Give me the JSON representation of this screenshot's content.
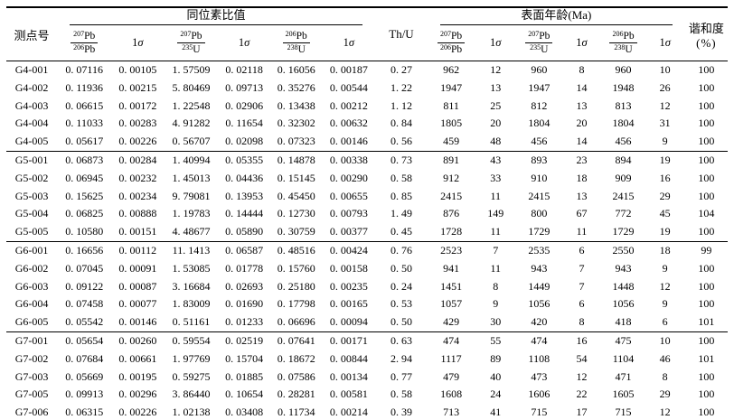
{
  "table": {
    "header": {
      "spot": "测点号",
      "isotope_group": "同位素比值",
      "th_u": "Th/U",
      "age_group": "表面年龄(Ma)",
      "concordance_line1": "谐和度",
      "concordance_line2": "(%)",
      "sigma_one": "1",
      "sigma_sym": "σ",
      "frac_pb207_pb206": {
        "num_sup": "207",
        "num_el": "Pb",
        "den_sup": "206",
        "den_el": "Pb"
      },
      "frac_pb207_u235": {
        "num_sup": "207",
        "num_el": "Pb",
        "den_sup": "235",
        "den_el": "U"
      },
      "frac_pb206_u238": {
        "num_sup": "206",
        "num_el": "Pb",
        "den_sup": "238",
        "den_el": "U"
      }
    },
    "column_keys": [
      "spot",
      "ratio_207_206",
      "sigma_207_206",
      "ratio_207_235",
      "sigma_207_235",
      "ratio_206_238",
      "sigma_206_238",
      "th_u",
      "age_207_206",
      "age_sigma_207_206",
      "age_207_235",
      "age_sigma_207_235",
      "age_206_238",
      "age_sigma_206_238",
      "concordance_pct"
    ],
    "groups": [
      {
        "id": "G4",
        "rows": [
          [
            "G4-001",
            "0. 07116",
            "0. 00105",
            "1. 57509",
            "0. 02118",
            "0. 16056",
            "0. 00187",
            "0. 27",
            "962",
            "12",
            "960",
            "8",
            "960",
            "10",
            "100"
          ],
          [
            "G4-002",
            "0. 11936",
            "0. 00215",
            "5. 80469",
            "0. 09713",
            "0. 35276",
            "0. 00544",
            "1. 22",
            "1947",
            "13",
            "1947",
            "14",
            "1948",
            "26",
            "100"
          ],
          [
            "G4-003",
            "0. 06615",
            "0. 00172",
            "1. 22548",
            "0. 02906",
            "0. 13438",
            "0. 00212",
            "1. 12",
            "811",
            "25",
            "812",
            "13",
            "813",
            "12",
            "100"
          ],
          [
            "G4-004",
            "0. 11033",
            "0. 00283",
            "4. 91282",
            "0. 11654",
            "0. 32302",
            "0. 00632",
            "0. 84",
            "1805",
            "20",
            "1804",
            "20",
            "1804",
            "31",
            "100"
          ],
          [
            "G4-005",
            "0. 05617",
            "0. 00226",
            "0. 56707",
            "0. 02098",
            "0. 07323",
            "0. 00146",
            "0. 56",
            "459",
            "48",
            "456",
            "14",
            "456",
            "9",
            "100"
          ]
        ]
      },
      {
        "id": "G5",
        "rows": [
          [
            "G5-001",
            "0. 06873",
            "0. 00284",
            "1. 40994",
            "0. 05355",
            "0. 14878",
            "0. 00338",
            "0. 73",
            "891",
            "43",
            "893",
            "23",
            "894",
            "19",
            "100"
          ],
          [
            "G5-002",
            "0. 06945",
            "0. 00232",
            "1. 45013",
            "0. 04436",
            "0. 15145",
            "0. 00290",
            "0. 58",
            "912",
            "33",
            "910",
            "18",
            "909",
            "16",
            "100"
          ],
          [
            "G5-003",
            "0. 15625",
            "0. 00234",
            "9. 79081",
            "0. 13953",
            "0. 45450",
            "0. 00655",
            "0. 85",
            "2415",
            "11",
            "2415",
            "13",
            "2415",
            "29",
            "100"
          ],
          [
            "G5-004",
            "0. 06825",
            "0. 00888",
            "1. 19783",
            "0. 14444",
            "0. 12730",
            "0. 00793",
            "1. 49",
            "876",
            "149",
            "800",
            "67",
            "772",
            "45",
            "104"
          ],
          [
            "G5-005",
            "0. 10580",
            "0. 00151",
            "4. 48677",
            "0. 05890",
            "0. 30759",
            "0. 00377",
            "0. 45",
            "1728",
            "11",
            "1729",
            "11",
            "1729",
            "19",
            "100"
          ]
        ]
      },
      {
        "id": "G6",
        "rows": [
          [
            "G6-001",
            "0. 16656",
            "0. 00112",
            "11. 1413",
            "0. 06587",
            "0. 48516",
            "0. 00424",
            "0. 76",
            "2523",
            "7",
            "2535",
            "6",
            "2550",
            "18",
            "99"
          ],
          [
            "G6-002",
            "0. 07045",
            "0. 00091",
            "1. 53085",
            "0. 01778",
            "0. 15760",
            "0. 00158",
            "0. 50",
            "941",
            "11",
            "943",
            "7",
            "943",
            "9",
            "100"
          ],
          [
            "G6-003",
            "0. 09122",
            "0. 00087",
            "3. 16684",
            "0. 02693",
            "0. 25180",
            "0. 00235",
            "0. 24",
            "1451",
            "8",
            "1449",
            "7",
            "1448",
            "12",
            "100"
          ],
          [
            "G6-004",
            "0. 07458",
            "0. 00077",
            "1. 83009",
            "0. 01690",
            "0. 17798",
            "0. 00165",
            "0. 53",
            "1057",
            "9",
            "1056",
            "6",
            "1056",
            "9",
            "100"
          ],
          [
            "G6-005",
            "0. 05542",
            "0. 00146",
            "0. 51161",
            "0. 01233",
            "0. 06696",
            "0. 00094",
            "0. 50",
            "429",
            "30",
            "420",
            "8",
            "418",
            "6",
            "101"
          ]
        ]
      },
      {
        "id": "G7",
        "rows": [
          [
            "G7-001",
            "0. 05654",
            "0. 00260",
            "0. 59554",
            "0. 02519",
            "0. 07641",
            "0. 00171",
            "0. 63",
            "474",
            "55",
            "474",
            "16",
            "475",
            "10",
            "100"
          ],
          [
            "G7-002",
            "0. 07684",
            "0. 00661",
            "1. 97769",
            "0. 15704",
            "0. 18672",
            "0. 00844",
            "2. 94",
            "1117",
            "89",
            "1108",
            "54",
            "1104",
            "46",
            "101"
          ],
          [
            "G7-003",
            "0. 05669",
            "0. 00195",
            "0. 59275",
            "0. 01885",
            "0. 07586",
            "0. 00134",
            "0. 77",
            "479",
            "40",
            "473",
            "12",
            "471",
            "8",
            "100"
          ],
          [
            "G7-005",
            "0. 09913",
            "0. 00296",
            "3. 86440",
            "0. 10654",
            "0. 28281",
            "0. 00581",
            "0. 58",
            "1608",
            "24",
            "1606",
            "22",
            "1605",
            "29",
            "100"
          ],
          [
            "G7-006",
            "0. 06315",
            "0. 00226",
            "1. 02138",
            "0. 03408",
            "0. 11734",
            "0. 00214",
            "0. 39",
            "713",
            "41",
            "715",
            "17",
            "715",
            "12",
            "100"
          ]
        ]
      }
    ]
  }
}
